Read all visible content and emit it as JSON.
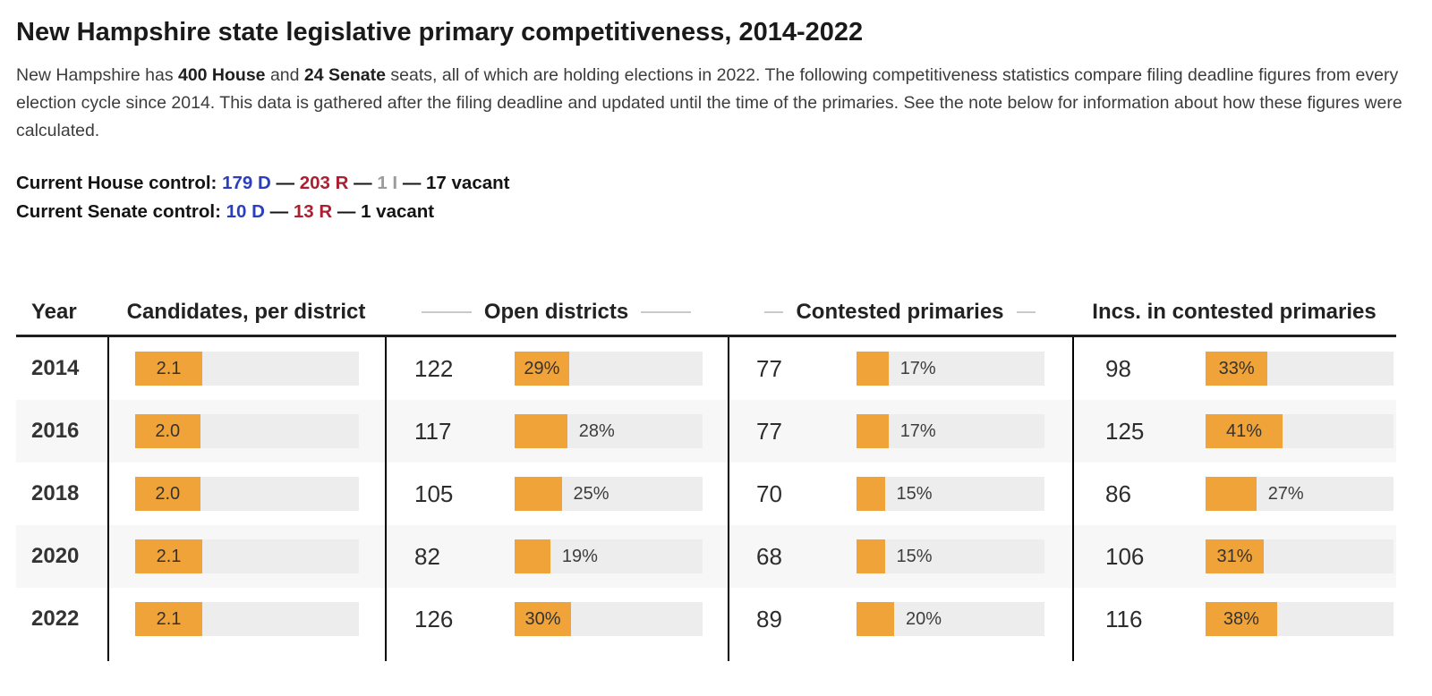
{
  "title": "New Hampshire state legislative primary competitiveness, 2014-2022",
  "intro": {
    "segments": [
      {
        "text": "New Hampshire has ",
        "bold": false
      },
      {
        "text": "400 House",
        "bold": true
      },
      {
        "text": " and ",
        "bold": false
      },
      {
        "text": "24 Senate",
        "bold": true
      },
      {
        "text": " seats, all of which are holding elections in 2022. The following competitiveness statistics compare filing deadline figures from every election cycle since 2014. This data is gathered after the filing deadline and updated until the time of the primaries. See the note below for information about how these figures were calculated.",
        "bold": false
      }
    ]
  },
  "control": {
    "house": [
      {
        "text": "Current House control: ",
        "color": "dark"
      },
      {
        "text": "179 D",
        "color": "democrat"
      },
      {
        "text": " — ",
        "color": "dark"
      },
      {
        "text": "203 R",
        "color": "republican"
      },
      {
        "text": " — ",
        "color": "dark"
      },
      {
        "text": "1 I",
        "color": "independent"
      },
      {
        "text": " — ",
        "color": "dark"
      },
      {
        "text": "17 vacant",
        "color": "dark"
      }
    ],
    "senate": [
      {
        "text": "Current Senate control: ",
        "color": "dark"
      },
      {
        "text": "10 D",
        "color": "democrat"
      },
      {
        "text": " — ",
        "color": "dark"
      },
      {
        "text": "13 R",
        "color": "republican"
      },
      {
        "text": " — ",
        "color": "dark"
      },
      {
        "text": "1 vacant",
        "color": "dark"
      }
    ]
  },
  "colors": {
    "accent_orange": "#f0a339",
    "bar_track": "#ededed",
    "row_alt": "#f7f7f7",
    "democrat_blue": "#2a3fc0",
    "republican_red": "#ab1f30",
    "independent_gray": "#9b9b9b"
  },
  "table": {
    "headers": {
      "year": "Year",
      "candidates": "Candidates, per district",
      "open": "Open districts",
      "contested": "Contested primaries",
      "incs": "Incs. in contested primaries"
    },
    "rows": [
      {
        "year": "2014",
        "candidates": {
          "label": "2.1",
          "bar_pct": 30,
          "label_inside": true
        },
        "open": {
          "count": "122",
          "label": "29%",
          "bar_pct": 29,
          "label_inside": true
        },
        "contested": {
          "count": "77",
          "label": "17%",
          "bar_pct": 17,
          "label_inside": false
        },
        "incs": {
          "count": "98",
          "label": "33%",
          "bar_pct": 33,
          "label_inside": true
        }
      },
      {
        "year": "2016",
        "candidates": {
          "label": "2.0",
          "bar_pct": 29,
          "label_inside": true
        },
        "open": {
          "count": "117",
          "label": "28%",
          "bar_pct": 28,
          "label_inside": false
        },
        "contested": {
          "count": "77",
          "label": "17%",
          "bar_pct": 17,
          "label_inside": false
        },
        "incs": {
          "count": "125",
          "label": "41%",
          "bar_pct": 41,
          "label_inside": true
        }
      },
      {
        "year": "2018",
        "candidates": {
          "label": "2.0",
          "bar_pct": 29,
          "label_inside": true
        },
        "open": {
          "count": "105",
          "label": "25%",
          "bar_pct": 25,
          "label_inside": false
        },
        "contested": {
          "count": "70",
          "label": "15%",
          "bar_pct": 15,
          "label_inside": false
        },
        "incs": {
          "count": "86",
          "label": "27%",
          "bar_pct": 27,
          "label_inside": false
        }
      },
      {
        "year": "2020",
        "candidates": {
          "label": "2.1",
          "bar_pct": 30,
          "label_inside": true
        },
        "open": {
          "count": "82",
          "label": "19%",
          "bar_pct": 19,
          "label_inside": false
        },
        "contested": {
          "count": "68",
          "label": "15%",
          "bar_pct": 15,
          "label_inside": false
        },
        "incs": {
          "count": "106",
          "label": "31%",
          "bar_pct": 31,
          "label_inside": true
        }
      },
      {
        "year": "2022",
        "candidates": {
          "label": "2.1",
          "bar_pct": 30,
          "label_inside": true
        },
        "open": {
          "count": "126",
          "label": "30%",
          "bar_pct": 30,
          "label_inside": true
        },
        "contested": {
          "count": "89",
          "label": "20%",
          "bar_pct": 20,
          "label_inside": false
        },
        "incs": {
          "count": "116",
          "label": "38%",
          "bar_pct": 38,
          "label_inside": true
        }
      }
    ]
  },
  "chart_data": {
    "type": "table",
    "title": "New Hampshire state legislative primary competitiveness, 2014-2022",
    "categories": [
      "2014",
      "2016",
      "2018",
      "2020",
      "2022"
    ],
    "series": [
      {
        "name": "Candidates, per district",
        "values": [
          2.1,
          2.0,
          2.0,
          2.1,
          2.1
        ]
      },
      {
        "name": "Open districts (count)",
        "values": [
          122,
          117,
          105,
          82,
          126
        ]
      },
      {
        "name": "Open districts (%)",
        "values": [
          29,
          28,
          25,
          19,
          30
        ]
      },
      {
        "name": "Contested primaries (count)",
        "values": [
          77,
          77,
          70,
          68,
          89
        ]
      },
      {
        "name": "Contested primaries (%)",
        "values": [
          17,
          17,
          15,
          15,
          20
        ]
      },
      {
        "name": "Incs. in contested primaries (count)",
        "values": [
          98,
          125,
          86,
          106,
          116
        ]
      },
      {
        "name": "Incs. in contested primaries (%)",
        "values": [
          33,
          41,
          27,
          31,
          38
        ]
      }
    ],
    "layout": "each row shows count plus horizontal orange bar on gray track; bar length equals percentage"
  }
}
